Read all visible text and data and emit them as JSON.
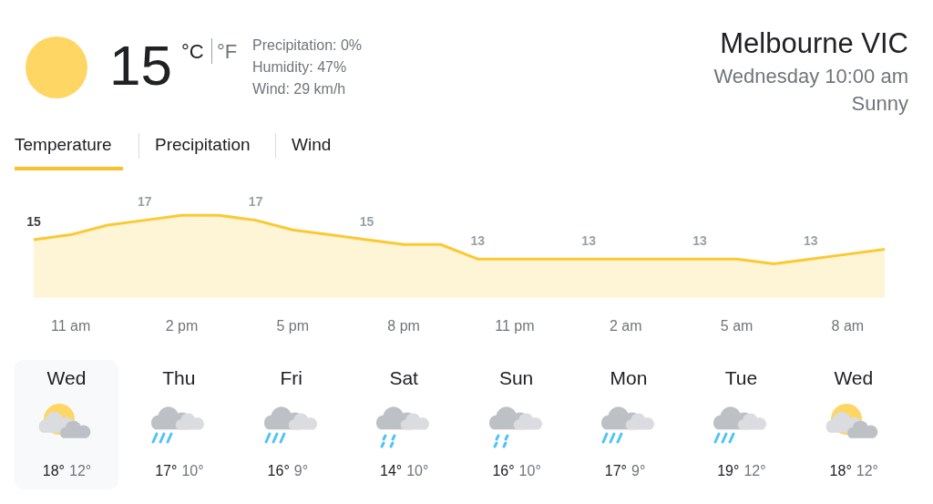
{
  "chart_data": [
    {
      "type": "other",
      "title": "Melbourne VIC",
      "subtitle": "Wednesday 10:00 am",
      "annotations": [
        "15",
        "°C",
        "°F",
        "Precipitation: 0%",
        "Humidity: 47%",
        "Wind: 29 km/h",
        "Sunny",
        "Temperature",
        "Precipitation",
        "Wind"
      ]
    },
    {
      "type": "area",
      "categories": [
        null,
        "11 am",
        null,
        null,
        "2 pm",
        null,
        null,
        "5 pm",
        null,
        null,
        "8 pm",
        null,
        null,
        "11 pm",
        null,
        null,
        "2 am",
        null,
        null,
        "5 am",
        null,
        null,
        "8 am",
        null
      ],
      "series": [
        {
          "color": "#fbc934",
          "values": [
            15,
            15.5,
            16.5,
            17,
            17.5,
            17.5,
            17,
            16,
            15.5,
            15,
            14.5,
            14.5,
            13,
            13,
            13,
            13,
            13,
            13,
            13,
            13,
            12.5,
            13,
            13.5,
            14
          ],
          "value_labels": [
            "15",
            null,
            null,
            "17",
            null,
            null,
            "17",
            null,
            null,
            "15",
            null,
            null,
            "13",
            null,
            null,
            "13",
            null,
            null,
            "13",
            null,
            null,
            "13",
            null,
            null
          ]
        }
      ],
      "grid": false,
      "legend": false
    },
    {
      "type": "other",
      "categories": [
        "Wed",
        "Thu",
        "Fri",
        "Sat",
        "Sun",
        "Mon",
        "Tue",
        "Wed"
      ],
      "annotations": [
        "18°",
        "12°",
        "17°",
        "10°",
        "16°",
        "9°",
        "14°",
        "10°",
        "16°",
        "10°",
        "17°",
        "9°",
        "19°",
        "12°",
        "18°",
        "12°"
      ]
    }
  ]
}
